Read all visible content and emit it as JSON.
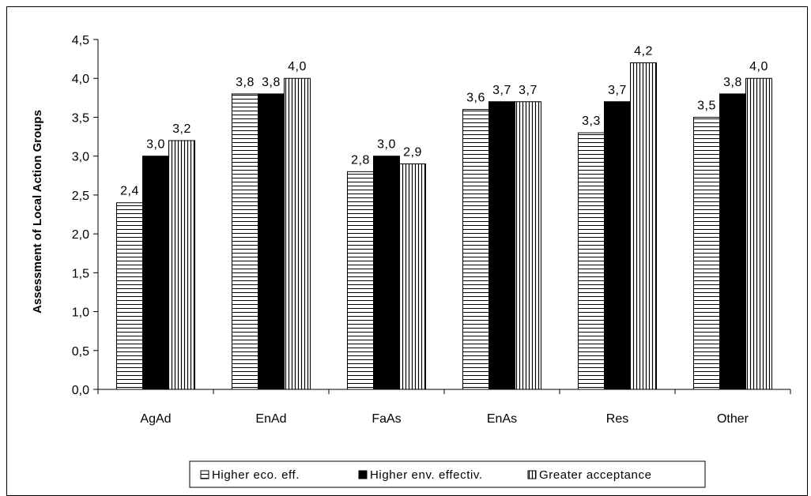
{
  "chart_data": {
    "type": "bar",
    "categories": [
      "AgAd",
      "EnAd",
      "FaAs",
      "EnAs",
      "Res",
      "Other"
    ],
    "series": [
      {
        "name": "Higher eco. eff.",
        "values": [
          2.4,
          3.8,
          2.8,
          3.6,
          3.3,
          3.5
        ],
        "labels": [
          "2,4",
          "3,8",
          "2,8",
          "3,6",
          "3,3",
          "3,5"
        ],
        "pattern": "horizontal-lines"
      },
      {
        "name": "Higher env. effectiv.",
        "values": [
          3.0,
          3.8,
          3.0,
          3.7,
          3.7,
          3.8
        ],
        "labels": [
          "3,0",
          "3,8",
          "3,0",
          "3,7",
          "3,7",
          "3,8"
        ],
        "pattern": "solid-black"
      },
      {
        "name": "Greater acceptance",
        "values": [
          3.2,
          4.0,
          2.9,
          3.7,
          4.2,
          4.0
        ],
        "labels": [
          "3,2",
          "4,0",
          "2,9",
          "3,7",
          "4,2",
          "4,0"
        ],
        "pattern": "vertical-lines"
      }
    ],
    "ylabel": "Assessment  of Local Action Groups",
    "xlabel": "",
    "ylim": [
      0,
      4.5
    ],
    "yticks": [
      "0,0",
      "0,5",
      "1,0",
      "1,5",
      "2,0",
      "2,5",
      "3,0",
      "3,5",
      "4,0",
      "4,5"
    ],
    "legend_position": "bottom",
    "grid": false
  }
}
